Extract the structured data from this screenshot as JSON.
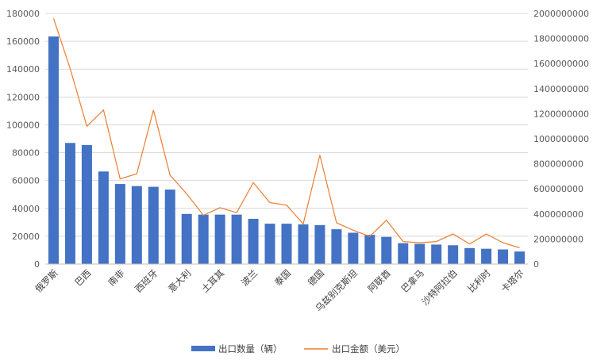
{
  "chart_data": {
    "type": "bar+line",
    "categories": [
      "俄罗斯",
      "",
      "巴西",
      "",
      "南非",
      "",
      "西班牙",
      "",
      "意大利",
      "",
      "土耳其",
      "",
      "波兰",
      "",
      "泰国",
      "",
      "德国",
      "",
      "乌兹别克斯坦",
      "",
      "阿联酋",
      "",
      "巴拿马",
      "",
      "沙特阿拉伯",
      "",
      "比利时",
      "",
      "卡塔尔"
    ],
    "series": [
      {
        "name": "出口数量（辆）",
        "type": "bar",
        "axis": "left",
        "color": "#4472C4",
        "values": [
          163500,
          87000,
          85500,
          66500,
          57500,
          56000,
          55500,
          53500,
          36000,
          35500,
          35500,
          35500,
          32500,
          29000,
          29000,
          28500,
          28000,
          25000,
          22500,
          21000,
          19500,
          15000,
          14500,
          14000,
          13500,
          11500,
          11000,
          10500,
          9000
        ]
      },
      {
        "name": "出口金额（美元）",
        "type": "line",
        "axis": "right",
        "color": "#ED7D31",
        "values": [
          1960000000,
          1560000000,
          1100000000,
          1230000000,
          680000000,
          720000000,
          1230000000,
          710000000,
          560000000,
          390000000,
          450000000,
          410000000,
          650000000,
          490000000,
          470000000,
          320000000,
          870000000,
          330000000,
          270000000,
          220000000,
          350000000,
          180000000,
          170000000,
          180000000,
          240000000,
          160000000,
          240000000,
          170000000,
          130000000
        ]
      }
    ],
    "y_left": {
      "min": 0,
      "max": 180000,
      "ticks": [
        "0",
        "20000",
        "40000",
        "60000",
        "80000",
        "100000",
        "120000",
        "140000",
        "160000",
        "180000"
      ]
    },
    "y_right": {
      "min": 0,
      "max": 2000000000,
      "ticks": [
        "0",
        "200000000",
        "400000000",
        "600000000",
        "800000000",
        "1000000000",
        "1200000000",
        "1400000000",
        "1600000000",
        "1800000000",
        "2000000000"
      ]
    },
    "grid": true,
    "legend_position": "bottom"
  }
}
